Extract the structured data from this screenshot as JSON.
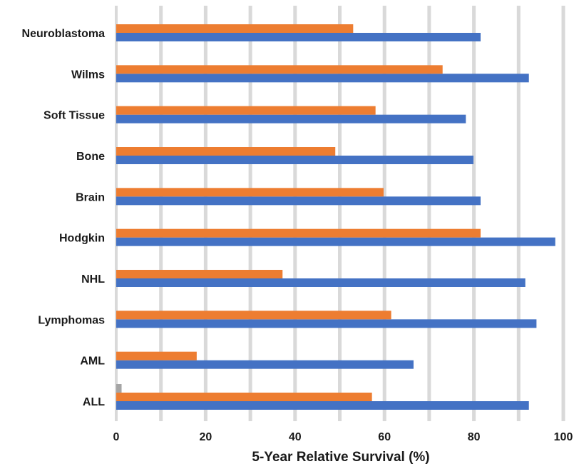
{
  "chart_data": {
    "type": "bar",
    "orientation": "horizontal",
    "title": "",
    "xlabel": "5-Year Relative Survival (%)",
    "ylabel": "",
    "xlim": [
      0,
      100
    ],
    "x_ticks": [
      "0",
      "20",
      "40",
      "60",
      "80",
      "100"
    ],
    "grid": "vertical",
    "legend": "none",
    "categories": [
      "Neuroblastoma",
      "Wilms",
      "Soft Tissue",
      "Bone",
      "Brain",
      "Hodgkin",
      "NHL",
      "Lymphomas",
      "AML",
      "ALL"
    ],
    "series": [
      {
        "color": "#4472c4",
        "values": [
          81.5,
          92.3,
          78.2,
          79.9,
          81.5,
          98.2,
          91.5,
          94.0,
          66.5,
          92.3
        ]
      },
      {
        "color": "#ed7d31",
        "values": [
          53.0,
          73.0,
          58.0,
          49.0,
          59.8,
          81.5,
          37.2,
          61.5,
          18.0,
          57.2
        ]
      },
      {
        "color": "#a5a5a5",
        "values": [
          null,
          null,
          null,
          null,
          null,
          null,
          null,
          null,
          null,
          1.2
        ]
      }
    ]
  },
  "colors": {
    "gridline": "#d9d9d9",
    "background": "#ffffff"
  }
}
